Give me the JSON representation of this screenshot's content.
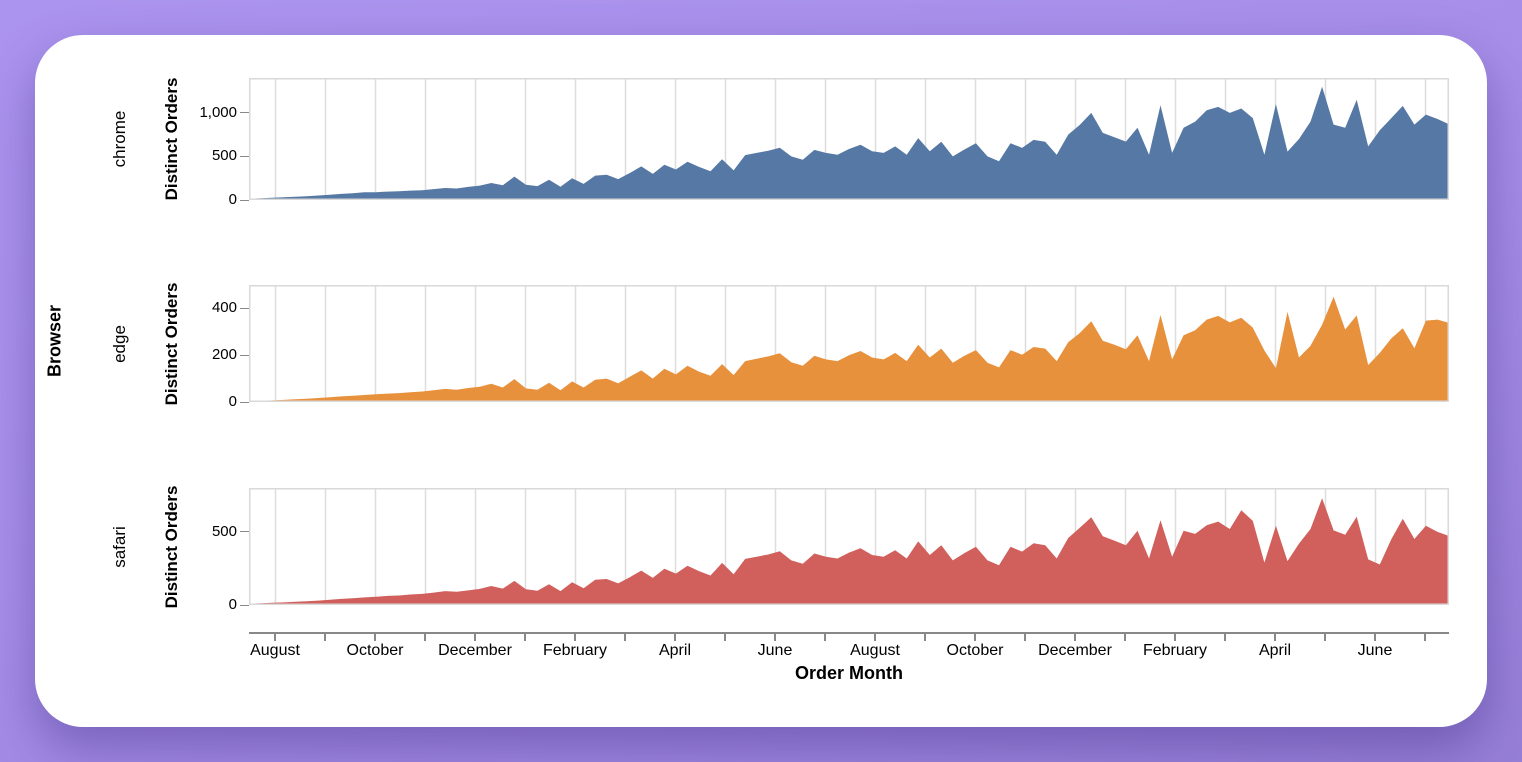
{
  "page": {
    "background_top": "#ab94ef",
    "background_bottom": "#967fd6",
    "card_background": "#ffffff"
  },
  "chart_data": {
    "type": "area",
    "layout": "faceted-rows",
    "row_field_title": "Browser",
    "x_title": "Order Month",
    "y_title": "Distinct Orders",
    "x_granularity": "weekly points spanning 24 months",
    "grid": true,
    "axis_color": "#888888",
    "gridline_color": "#dddddd",
    "plot_border_color": "#d9d9d9",
    "x_month_ticks": [
      "August",
      "September",
      "October",
      "November",
      "December",
      "January",
      "February",
      "March",
      "April",
      "May",
      "June",
      "July",
      "August",
      "September",
      "October",
      "November",
      "December",
      "January",
      "February",
      "March",
      "April",
      "May",
      "June",
      "July"
    ],
    "x_label_every": 2,
    "x_tick_labels_visible": [
      "August",
      "October",
      "December",
      "February",
      "April",
      "June",
      "August",
      "October",
      "December",
      "February",
      "April",
      "June"
    ],
    "facets": [
      {
        "name": "chrome",
        "color": "#5578a4",
        "ylim": [
          0,
          1400
        ],
        "yticks": [
          0,
          500,
          1000
        ],
        "ytick_labels": [
          "0",
          "500",
          "1,000"
        ],
        "values": [
          15,
          20,
          26,
          32,
          38,
          44,
          52,
          60,
          70,
          78,
          88,
          90,
          96,
          100,
          108,
          112,
          125,
          138,
          132,
          150,
          165,
          195,
          170,
          268,
          175,
          160,
          232,
          152,
          250,
          185,
          280,
          290,
          240,
          310,
          385,
          300,
          405,
          350,
          438,
          380,
          330,
          468,
          340,
          515,
          540,
          565,
          600,
          500,
          462,
          575,
          540,
          520,
          585,
          635,
          560,
          540,
          615,
          520,
          710,
          560,
          668,
          500,
          580,
          652,
          500,
          445,
          652,
          598,
          690,
          668,
          520,
          750,
          862,
          1000,
          770,
          720,
          670,
          830,
          520,
          1088,
          540,
          830,
          900,
          1030,
          1068,
          1000,
          1050,
          940,
          520,
          1100,
          555,
          700,
          900,
          1300,
          865,
          830,
          1150,
          615,
          800,
          940,
          1080,
          865,
          980,
          930,
          870
        ]
      },
      {
        "name": "edge",
        "color": "#e8913d",
        "ylim": [
          0,
          500
        ],
        "yticks": [
          0,
          200,
          400
        ],
        "ytick_labels": [
          "0",
          "200",
          "400"
        ],
        "values": [
          3,
          5,
          7,
          9,
          12,
          14,
          17,
          20,
          24,
          27,
          30,
          33,
          36,
          38,
          42,
          45,
          50,
          56,
          52,
          60,
          65,
          78,
          62,
          98,
          58,
          52,
          82,
          50,
          88,
          62,
          95,
          100,
          80,
          108,
          135,
          100,
          142,
          118,
          155,
          130,
          112,
          162,
          115,
          175,
          185,
          195,
          208,
          170,
          155,
          198,
          182,
          175,
          200,
          218,
          190,
          182,
          210,
          175,
          245,
          190,
          228,
          168,
          198,
          222,
          168,
          148,
          222,
          202,
          235,
          228,
          175,
          255,
          295,
          345,
          262,
          245,
          225,
          285,
          175,
          372,
          182,
          285,
          307,
          352,
          368,
          340,
          360,
          318,
          220,
          145,
          385,
          190,
          240,
          330,
          450,
          310,
          370,
          158,
          210,
          272,
          315,
          230,
          348,
          352,
          338
        ]
      },
      {
        "name": "safari",
        "color": "#d15f5c",
        "ylim": [
          0,
          800
        ],
        "yticks": [
          0,
          500
        ],
        "ytick_labels": [
          "0",
          "500"
        ],
        "values": [
          8,
          12,
          15,
          18,
          22,
          26,
          30,
          36,
          42,
          46,
          52,
          56,
          62,
          65,
          72,
          76,
          85,
          95,
          90,
          100,
          110,
          130,
          112,
          165,
          108,
          98,
          142,
          95,
          155,
          115,
          172,
          178,
          148,
          190,
          235,
          185,
          248,
          215,
          268,
          232,
          202,
          288,
          210,
          315,
          330,
          345,
          368,
          305,
          282,
          352,
          330,
          318,
          358,
          388,
          342,
          330,
          375,
          318,
          435,
          342,
          408,
          305,
          355,
          398,
          305,
          272,
          398,
          365,
          422,
          408,
          318,
          458,
          528,
          600,
          470,
          440,
          408,
          508,
          318,
          580,
          330,
          508,
          486,
          545,
          570,
          520,
          648,
          575,
          290,
          542,
          300,
          420,
          520,
          730,
          510,
          480,
          604,
          312,
          277,
          450,
          590,
          451,
          542,
          500,
          472
        ]
      }
    ]
  }
}
